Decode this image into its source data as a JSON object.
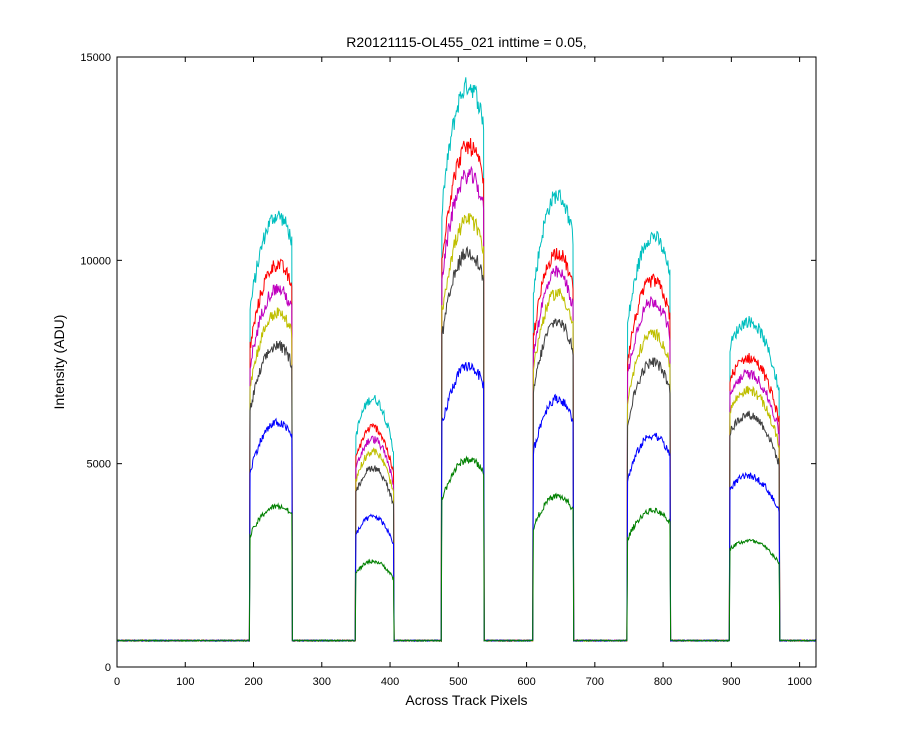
{
  "chart_data": {
    "type": "line",
    "title": "R20121115-OL455_021 inttime = 0.05,",
    "xlabel": "Across Track Pixels",
    "ylabel": "Intensity (ADU)",
    "xlim": [
      0,
      1024
    ],
    "ylim": [
      0,
      15000
    ],
    "xticks": [
      0,
      100,
      200,
      300,
      400,
      500,
      600,
      700,
      800,
      900,
      1000
    ],
    "yticks": [
      0,
      5000,
      10000,
      15000
    ],
    "xtick_labels": [
      "0",
      "100",
      "200",
      "300",
      "400",
      "500",
      "600",
      "700",
      "800",
      "900",
      "1000"
    ],
    "ytick_labels": [
      "0",
      "5000",
      "10000",
      "15000"
    ],
    "grid": false,
    "legend": "none",
    "baseline": 650,
    "blocks": [
      {
        "x_start": 195,
        "x_end": 256,
        "peak_x": 235
      },
      {
        "x_start": 350,
        "x_end": 405,
        "peak_x": 375
      },
      {
        "x_start": 476,
        "x_end": 537,
        "peak_x": 515
      },
      {
        "x_start": 610,
        "x_end": 668,
        "peak_x": 645
      },
      {
        "x_start": 748,
        "x_end": 810,
        "peak_x": 785
      },
      {
        "x_start": 898,
        "x_end": 970,
        "peak_x": 925
      }
    ],
    "series": [
      {
        "color": "#00BFBF",
        "peaks": [
          11100,
          6600,
          14300,
          11600,
          10600,
          8500
        ]
      },
      {
        "color": "#FF0000",
        "peaks": [
          9900,
          5900,
          12800,
          10200,
          9500,
          7600
        ]
      },
      {
        "color": "#BF00BF",
        "peaks": [
          9300,
          5600,
          12100,
          9700,
          9000,
          7200
        ]
      },
      {
        "color": "#BFBF00",
        "peaks": [
          8700,
          5300,
          11000,
          9200,
          8200,
          6800
        ]
      },
      {
        "color": "#404040",
        "peaks": [
          7900,
          4900,
          10200,
          8500,
          7500,
          6200
        ]
      },
      {
        "color": "#0000FF",
        "peaks": [
          6000,
          3700,
          7400,
          6600,
          5700,
          4700
        ]
      },
      {
        "color": "#008000",
        "peaks": [
          3950,
          2600,
          5100,
          4200,
          3850,
          3100
        ]
      }
    ]
  }
}
